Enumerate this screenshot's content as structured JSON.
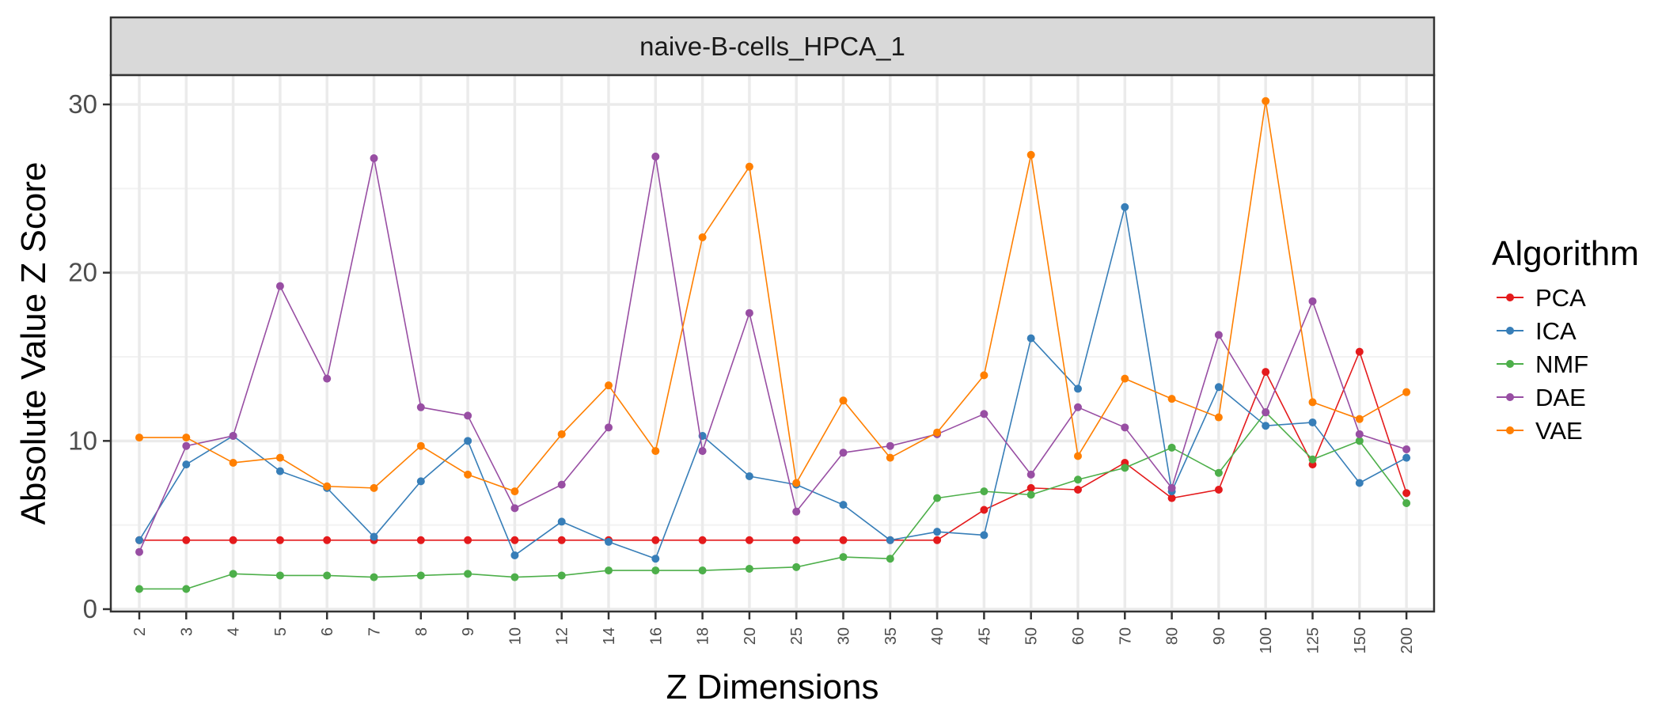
{
  "chart_data": {
    "type": "line",
    "facet_title": "naive-B-cells_HPCA_1",
    "xlabel": "Z Dimensions",
    "ylabel": "Absolute Value Z Score",
    "ylim": [
      0,
      30
    ],
    "yticks": [
      0,
      10,
      20,
      30
    ],
    "categories": [
      "2",
      "3",
      "4",
      "5",
      "6",
      "7",
      "8",
      "9",
      "10",
      "12",
      "14",
      "16",
      "18",
      "20",
      "25",
      "30",
      "35",
      "40",
      "45",
      "50",
      "60",
      "70",
      "80",
      "90",
      "100",
      "125",
      "150",
      "200"
    ],
    "grid": true,
    "legend": {
      "title": "Algorithm",
      "placement": "right"
    },
    "series": [
      {
        "name": "PCA",
        "color": "#e41a1c",
        "values": [
          4.1,
          4.1,
          4.1,
          4.1,
          4.1,
          4.1,
          4.1,
          4.1,
          4.1,
          4.1,
          4.1,
          4.1,
          4.1,
          4.1,
          4.1,
          4.1,
          4.1,
          4.1,
          5.9,
          7.2,
          7.1,
          8.7,
          6.6,
          7.1,
          14.1,
          8.6,
          15.3,
          6.9
        ]
      },
      {
        "name": "ICA",
        "color": "#377eb8",
        "values": [
          4.1,
          8.6,
          10.3,
          8.2,
          7.2,
          4.3,
          7.6,
          10.0,
          3.2,
          5.2,
          4.0,
          3.0,
          10.3,
          7.9,
          7.4,
          6.2,
          4.1,
          4.6,
          4.4,
          16.1,
          13.1,
          23.9,
          7.0,
          13.2,
          10.9,
          11.1,
          7.5,
          9.0
        ]
      },
      {
        "name": "NMF",
        "color": "#4daf4a",
        "values": [
          1.2,
          1.2,
          2.1,
          2.0,
          2.0,
          1.9,
          2.0,
          2.1,
          1.9,
          2.0,
          2.3,
          2.3,
          2.3,
          2.4,
          2.5,
          3.1,
          3.0,
          6.6,
          7.0,
          6.8,
          7.7,
          8.4,
          9.6,
          8.1,
          11.7,
          8.9,
          10.0,
          6.3
        ]
      },
      {
        "name": "DAE",
        "color": "#984ea3",
        "values": [
          3.4,
          9.7,
          10.3,
          19.2,
          13.7,
          26.8,
          12.0,
          11.5,
          6.0,
          7.4,
          10.8,
          26.9,
          9.4,
          17.6,
          5.8,
          9.3,
          9.7,
          10.4,
          11.6,
          8.0,
          12.0,
          10.8,
          7.2,
          16.3,
          11.7,
          18.3,
          10.4,
          9.5
        ]
      },
      {
        "name": "VAE",
        "color": "#ff7f00",
        "values": [
          10.2,
          10.2,
          8.7,
          9.0,
          7.3,
          7.2,
          9.7,
          8.0,
          7.0,
          10.4,
          13.3,
          9.4,
          22.1,
          26.3,
          7.5,
          12.4,
          9.0,
          10.5,
          13.9,
          27.0,
          9.1,
          13.7,
          12.5,
          11.4,
          30.2,
          12.3,
          11.3,
          12.9
        ]
      }
    ]
  }
}
